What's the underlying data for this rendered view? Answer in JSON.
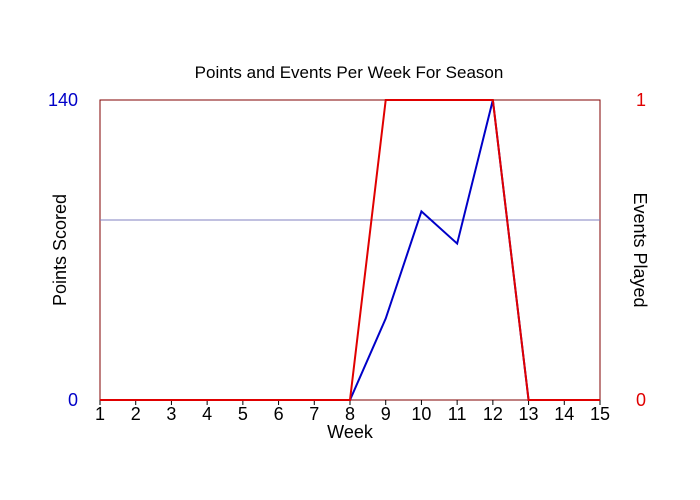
{
  "chart_data": {
    "type": "line",
    "title": "Points and Events Per Week For Season",
    "xlabel": "Week",
    "ylabel_left": "Points Scored",
    "ylabel_right": "Events Played",
    "x": [
      1,
      2,
      3,
      4,
      5,
      6,
      7,
      8,
      9,
      10,
      11,
      12,
      13,
      14,
      15
    ],
    "xlim": [
      1,
      15
    ],
    "ylim_left": [
      0,
      140
    ],
    "ylim_right": [
      0,
      1
    ],
    "left_ticks": [
      "0",
      "140"
    ],
    "right_ticks": [
      "0",
      "1"
    ],
    "grid": false,
    "reference_line": {
      "axis": "left",
      "value": 84
    },
    "series": [
      {
        "axis": "left",
        "color": "#0000c8",
        "values": [
          0,
          0,
          0,
          0,
          0,
          0,
          0,
          0,
          38,
          88,
          73,
          140,
          0,
          0,
          0
        ]
      },
      {
        "axis": "right",
        "color": "#e00000",
        "values": [
          0,
          0,
          0,
          0,
          0,
          0,
          0,
          0,
          1,
          1,
          1,
          1,
          0,
          0,
          0
        ]
      }
    ]
  },
  "colors": {
    "left_axis": "#0000c8",
    "right_axis": "#e00000",
    "frame": "#800000",
    "reference_line": "#8080c0"
  }
}
